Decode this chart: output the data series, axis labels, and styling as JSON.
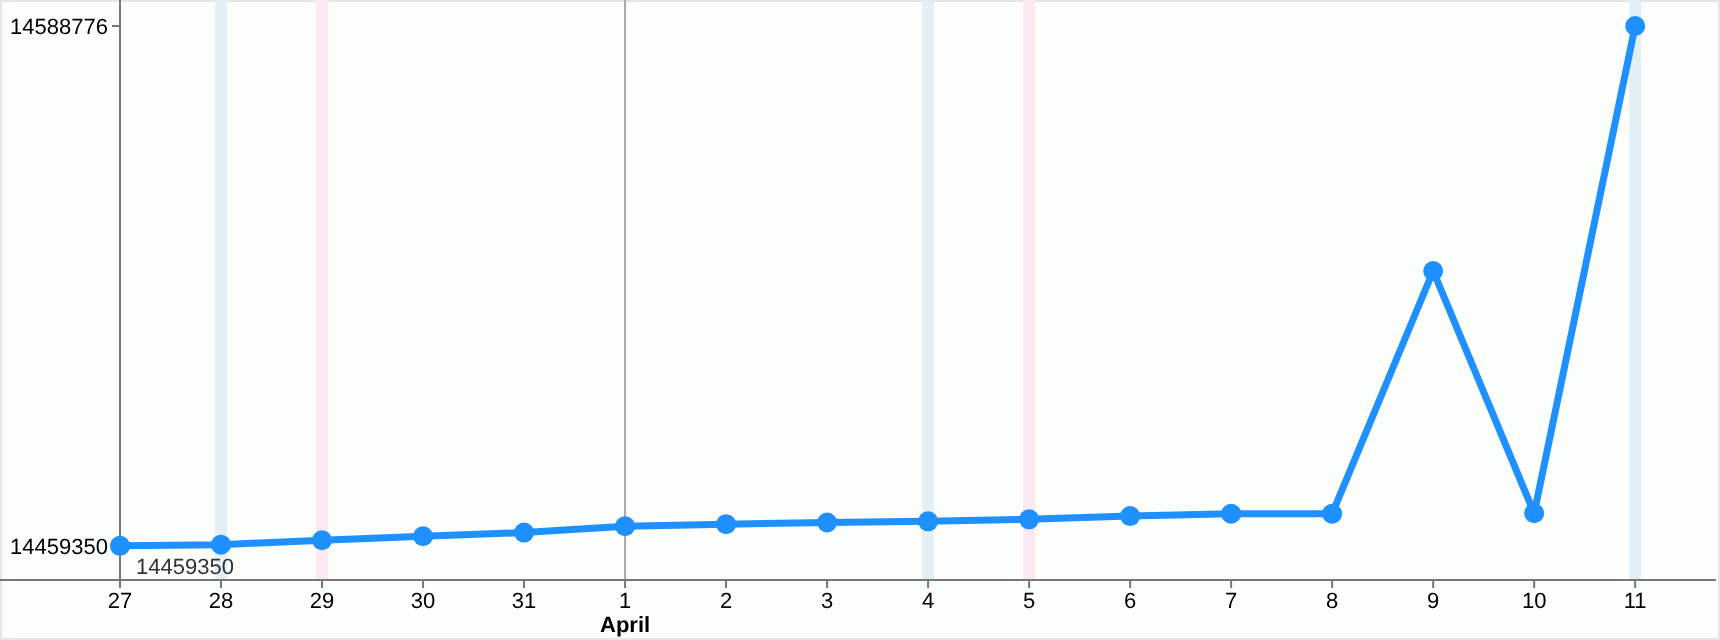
{
  "chart_data": {
    "type": "line",
    "categories": [
      "27",
      "28",
      "29",
      "30",
      "31",
      "1",
      "2",
      "3",
      "4",
      "5",
      "6",
      "7",
      "8",
      "9",
      "10",
      "11"
    ],
    "series": [
      {
        "color": "#1e90ff",
        "values": [
          14459400,
          14459700,
          14460800,
          14461800,
          14462700,
          14464300,
          14464800,
          14465200,
          14465500,
          14466000,
          14466800,
          14467400,
          14467400,
          14527800,
          14467500,
          14588776
        ]
      }
    ],
    "ylim": [
      14450900,
      14595250
    ],
    "yticks": [
      14459350,
      14588776
    ],
    "marker": "circle",
    "bands": [
      {
        "axis": "x",
        "from": "28",
        "to": "28",
        "color": "#e2f0f6"
      },
      {
        "axis": "x",
        "from": "4",
        "to": "4",
        "color": "#e2f0f6"
      },
      {
        "axis": "x",
        "from": "11",
        "to": "11",
        "color": "#e2f0f6"
      },
      {
        "axis": "x",
        "from": "29",
        "to": "29",
        "color": "#fce8f0"
      },
      {
        "axis": "x",
        "from": "5",
        "to": "5",
        "color": "#fce8f0"
      }
    ],
    "ref_lines": [
      {
        "axis": "x",
        "value": "1",
        "color": "#a9a9a9"
      }
    ],
    "annotations": [
      "April",
      {
        "text": "14459350",
        "x": "27",
        "y": 14459350
      }
    ]
  }
}
